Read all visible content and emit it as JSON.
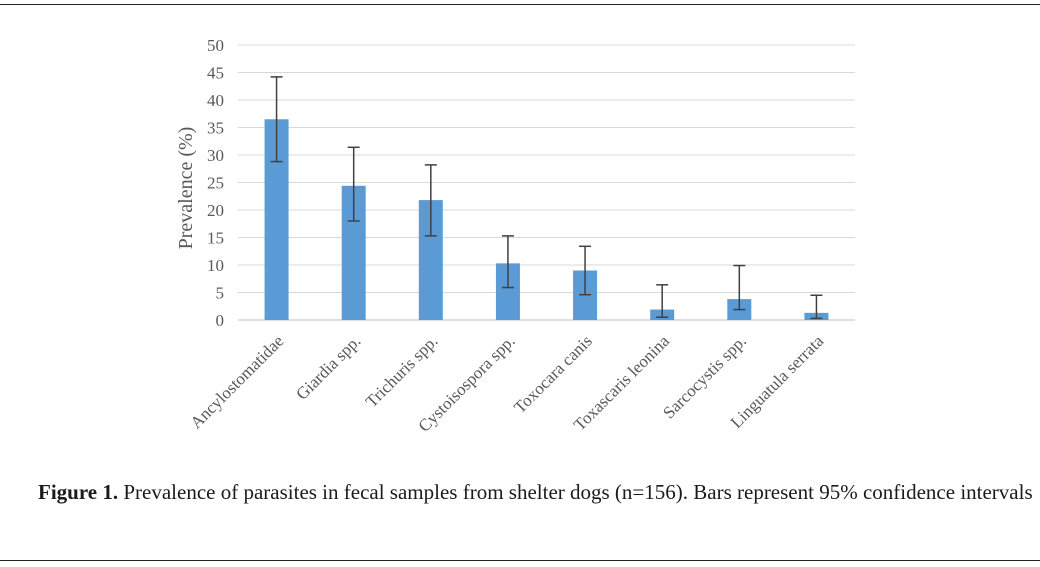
{
  "chart_data": {
    "type": "bar",
    "ylabel": "Prevalence (%)",
    "xlabel": "",
    "ylim": [
      0,
      50
    ],
    "yticks": [
      0,
      5,
      10,
      15,
      20,
      25,
      30,
      35,
      40,
      45,
      50
    ],
    "grid": true,
    "error_bars": "95% confidence intervals",
    "bar_color": "#5b9bd5",
    "categories": [
      "Ancylostomatidae",
      "Giardia spp.",
      "Trichuris spp.",
      "Cystoisospora spp.",
      "Toxocara canis",
      "Toxascaris leonina",
      "Sarcocystis spp.",
      "Linguatula serrata"
    ],
    "values": [
      36.5,
      24.4,
      21.8,
      10.3,
      9.0,
      1.9,
      3.8,
      1.3
    ],
    "ci_lower": [
      28.8,
      18.0,
      15.3,
      5.9,
      4.6,
      0.5,
      1.9,
      0.3
    ],
    "ci_upper": [
      44.2,
      31.4,
      28.2,
      15.3,
      13.4,
      6.4,
      9.9,
      4.5
    ]
  },
  "caption": {
    "label": "Figure 1.",
    "text": "Prevalence of parasites in fecal samples from shelter dogs (n=156). Bars represent 95% confidence intervals"
  },
  "colors": {
    "bar": "#5b9bd5",
    "grid": "#d9d9d9",
    "axis_text": "#595959",
    "error_bar": "#404040"
  }
}
